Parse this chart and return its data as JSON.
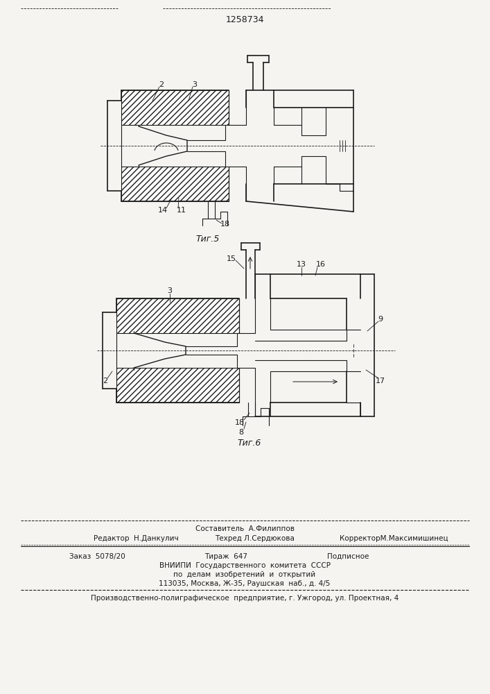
{
  "patent_number": "1258734",
  "fig5_label": "Τиг.5",
  "fig6_label": "Τиг.6",
  "background_color": "#f5f4f0",
  "line_color": "#1a1a1a",
  "text_color": "#1a1a1a",
  "footer_line1": "Составитель  А.Филиппов",
  "footer_line2a": "Редактор  Н.Данкулич",
  "footer_line2b": "Техред Л.Сердюкова",
  "footer_line2c": "КорректорМ.Максимишинец",
  "footer_line3a": "Заказ  5078/20",
  "footer_line3b": "Тираж  647",
  "footer_line3c": "Подписное",
  "footer_line4": "ВНИИПИ  Государственного  комитета  СССР",
  "footer_line5": "по  делам  изобретений  и  открытий",
  "footer_line6": "113035, Москва, Ж-35, Раушская  наб., д. 4/5",
  "footer_line7": "Производственно-полиграфическое  предприятие, г. Ужгород, ул. Проектная, 4"
}
